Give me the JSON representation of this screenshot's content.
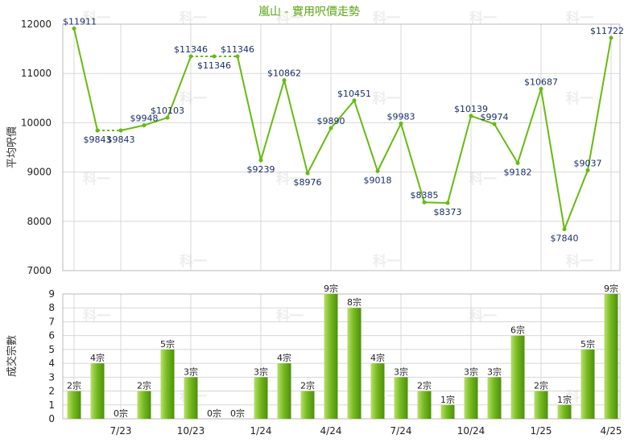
{
  "chart_data": [
    {
      "type": "line",
      "title": "嵐山 - 實用呎價走勢",
      "ylabel": "平均呎價",
      "ylim": [
        7000,
        12000
      ],
      "yticks": [
        7000,
        8000,
        9000,
        10000,
        11000,
        12000
      ],
      "grid": true,
      "colors": {
        "line": "#66bb11",
        "dotted": "#66bb11",
        "marker": "#66bb11",
        "label": "#1a2f66",
        "grid": "#d8d8d8"
      },
      "points": [
        {
          "label": "$11911",
          "value": 11911
        },
        {
          "label": "$9843",
          "value": 9843
        },
        {
          "label": "$9843",
          "value": 9843
        },
        {
          "label": "$9948",
          "value": 9948
        },
        {
          "label": "$10103",
          "value": 10103
        },
        {
          "label": "$11346",
          "value": 11346
        },
        {
          "label": "$11346",
          "value": 11346
        },
        {
          "label": "$11346",
          "value": 11346
        },
        {
          "label": "$9239",
          "value": 9239
        },
        {
          "label": "$10862",
          "value": 10862
        },
        {
          "label": "$8976",
          "value": 8976
        },
        {
          "label": "$9890",
          "value": 9890
        },
        {
          "label": "$10451",
          "value": 10451
        },
        {
          "label": "$9018",
          "value": 9018
        },
        {
          "label": "$9983",
          "value": 9983
        },
        {
          "label": "$8385",
          "value": 8385
        },
        {
          "label": "$8373",
          "value": 8373
        },
        {
          "label": "$10139",
          "value": 10139
        },
        {
          "label": "$9974",
          "value": 9974
        },
        {
          "label": "$9182",
          "value": 9182
        },
        {
          "label": "$10687",
          "value": 10687
        },
        {
          "label": "$7840",
          "value": 7840
        },
        {
          "label": "$9037",
          "value": 9037
        },
        {
          "label": "$11722",
          "value": 11722
        }
      ]
    },
    {
      "type": "bar",
      "ylabel": "成交宗數",
      "ylim": [
        0,
        9
      ],
      "yticks": [
        0,
        1,
        2,
        3,
        4,
        5,
        6,
        7,
        8,
        9
      ],
      "grid": true,
      "colors": {
        "bar": "#77bb22",
        "bar_light": "#b8e06a",
        "bar_dark": "#4e8f0c"
      },
      "x_tick_labels": [
        "7/23",
        "10/23",
        "1/24",
        "4/24",
        "7/24",
        "10/24",
        "1/25",
        "4/25"
      ],
      "bars": [
        {
          "label": "2宗",
          "value": 2
        },
        {
          "label": "4宗",
          "value": 4
        },
        {
          "label": "0宗",
          "value": 0
        },
        {
          "label": "2宗",
          "value": 2
        },
        {
          "label": "5宗",
          "value": 5
        },
        {
          "label": "3宗",
          "value": 3
        },
        {
          "label": "0宗",
          "value": 0
        },
        {
          "label": "0宗",
          "value": 0
        },
        {
          "label": "3宗",
          "value": 3
        },
        {
          "label": "4宗",
          "value": 4
        },
        {
          "label": "2宗",
          "value": 2
        },
        {
          "label": "9宗",
          "value": 9
        },
        {
          "label": "8宗",
          "value": 8
        },
        {
          "label": "4宗",
          "value": 4
        },
        {
          "label": "3宗",
          "value": 3
        },
        {
          "label": "2宗",
          "value": 2
        },
        {
          "label": "1宗",
          "value": 1
        },
        {
          "label": "3宗",
          "value": 3
        },
        {
          "label": "3宗",
          "value": 3
        },
        {
          "label": "6宗",
          "value": 6
        },
        {
          "label": "2宗",
          "value": 2
        },
        {
          "label": "1宗",
          "value": 1
        },
        {
          "label": "5宗",
          "value": 5
        },
        {
          "label": "9宗",
          "value": 9
        }
      ]
    }
  ],
  "watermark": "科一"
}
